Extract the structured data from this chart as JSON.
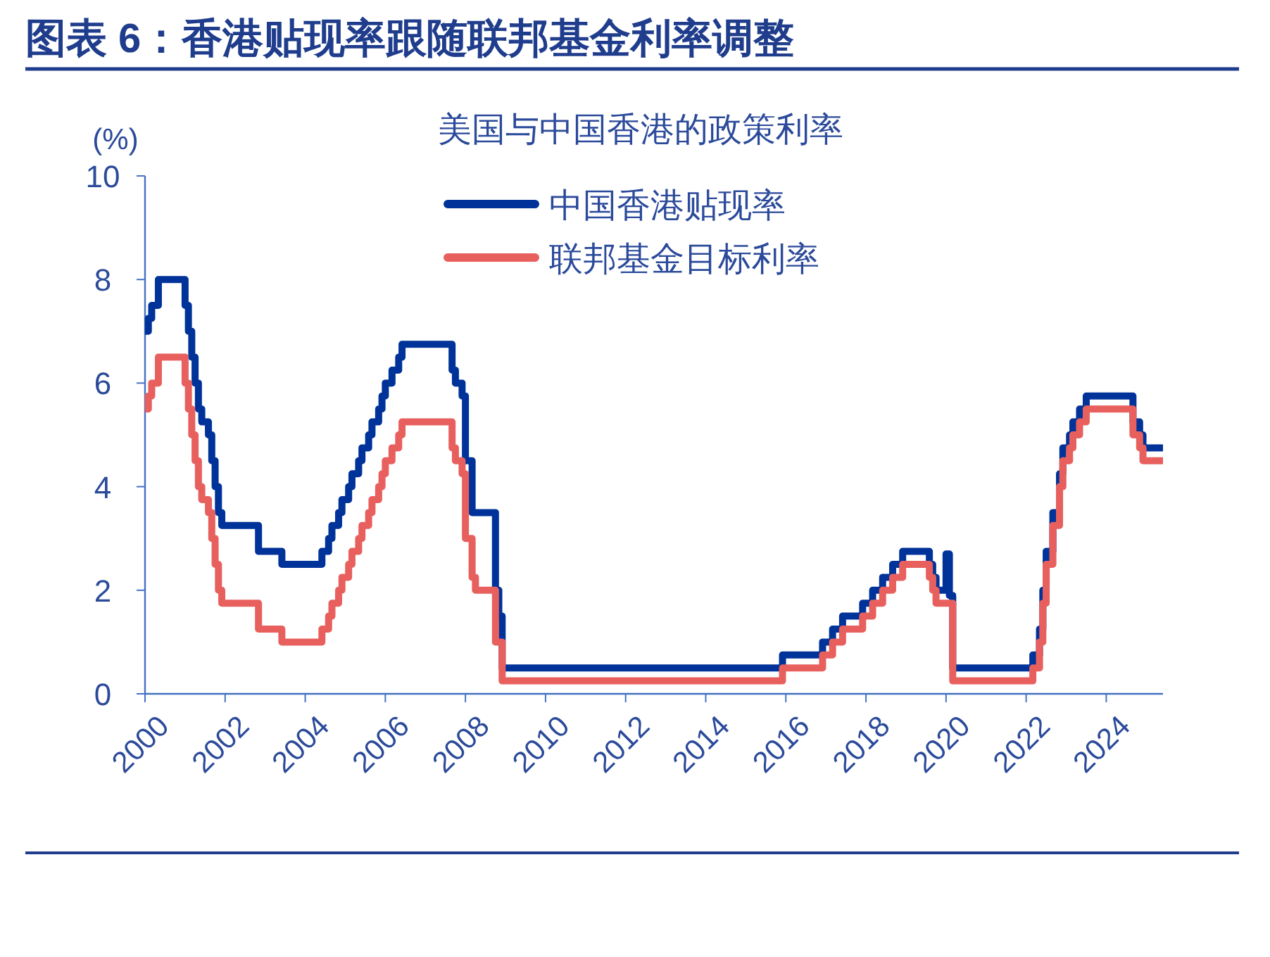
{
  "chart_data": {
    "type": "step",
    "title": "图表 6：香港贴现率跟随联邦基金利率调整",
    "subtitle": "美国与中国香港的政策利率",
    "ylabel": "(%)",
    "xlim": [
      "2000-01",
      "2025-06"
    ],
    "ylim": [
      0,
      10
    ],
    "yticks": [
      0,
      2,
      4,
      6,
      8,
      10
    ],
    "xticks": [
      "2000",
      "2002",
      "2004",
      "2006",
      "2008",
      "2010",
      "2012",
      "2014",
      "2016",
      "2018",
      "2020",
      "2022",
      "2024"
    ],
    "grid": false,
    "legend": "top",
    "marker": "none",
    "line_style": "solid",
    "series": [
      {
        "name": "中国香港贴现率",
        "color": "#003399",
        "x": [
          "2000-01",
          "2000-02",
          "2000-03",
          "2000-05",
          "2001-01",
          "2001-02",
          "2001-03",
          "2001-04",
          "2001-05",
          "2001-06",
          "2001-08",
          "2001-09",
          "2001-10",
          "2001-11",
          "2001-12",
          "2002-11",
          "2003-06",
          "2004-06",
          "2004-08",
          "2004-09",
          "2004-11",
          "2004-12",
          "2005-02",
          "2005-03",
          "2005-05",
          "2005-06",
          "2005-08",
          "2005-09",
          "2005-11",
          "2005-12",
          "2006-01",
          "2006-03",
          "2006-05",
          "2006-06",
          "2007-09",
          "2007-10",
          "2007-12",
          "2008-01",
          "2008-03",
          "2008-10",
          "2008-11",
          "2008-12",
          "2015-12",
          "2016-12",
          "2017-03",
          "2017-06",
          "2017-12",
          "2018-03",
          "2018-06",
          "2018-09",
          "2018-12",
          "2019-08",
          "2019-09",
          "2019-10",
          "2020-01",
          "2020-02",
          "2020-03",
          "2022-03",
          "2022-05",
          "2022-06",
          "2022-07",
          "2022-09",
          "2022-11",
          "2022-12",
          "2023-02",
          "2023-03",
          "2023-05",
          "2023-07",
          "2024-09",
          "2024-11",
          "2024-12",
          "2025-06"
        ],
        "values": [
          7.0,
          7.25,
          7.5,
          8.0,
          7.5,
          7.0,
          6.5,
          6.0,
          5.5,
          5.25,
          5.0,
          4.5,
          4.0,
          3.5,
          3.25,
          2.75,
          2.5,
          2.75,
          3.0,
          3.25,
          3.5,
          3.75,
          4.0,
          4.25,
          4.5,
          4.75,
          5.0,
          5.25,
          5.5,
          5.75,
          6.0,
          6.25,
          6.5,
          6.75,
          6.25,
          6.0,
          5.75,
          4.5,
          3.5,
          2.0,
          1.5,
          0.5,
          0.75,
          1.0,
          1.25,
          1.5,
          1.75,
          2.0,
          2.25,
          2.5,
          2.75,
          2.5,
          2.25,
          2.0,
          2.7,
          1.9,
          0.5,
          0.75,
          1.25,
          2.0,
          2.75,
          3.5,
          4.25,
          4.75,
          5.0,
          5.25,
          5.5,
          5.75,
          5.25,
          5.0,
          4.75,
          4.75
        ]
      },
      {
        "name": "联邦基金目标利率",
        "color": "#e8605e",
        "x": [
          "2000-01",
          "2000-02",
          "2000-03",
          "2000-05",
          "2001-01",
          "2001-02",
          "2001-03",
          "2001-04",
          "2001-05",
          "2001-06",
          "2001-08",
          "2001-09",
          "2001-10",
          "2001-11",
          "2001-12",
          "2002-11",
          "2003-06",
          "2004-06",
          "2004-08",
          "2004-09",
          "2004-11",
          "2004-12",
          "2005-02",
          "2005-03",
          "2005-05",
          "2005-06",
          "2005-08",
          "2005-09",
          "2005-11",
          "2005-12",
          "2006-01",
          "2006-03",
          "2006-05",
          "2006-06",
          "2007-09",
          "2007-10",
          "2007-12",
          "2008-01",
          "2008-03",
          "2008-04",
          "2008-10",
          "2008-12",
          "2015-12",
          "2016-12",
          "2017-03",
          "2017-06",
          "2017-12",
          "2018-03",
          "2018-06",
          "2018-09",
          "2018-12",
          "2019-08",
          "2019-09",
          "2019-10",
          "2020-03",
          "2022-03",
          "2022-05",
          "2022-06",
          "2022-07",
          "2022-09",
          "2022-11",
          "2022-12",
          "2023-02",
          "2023-03",
          "2023-05",
          "2023-07",
          "2024-09",
          "2024-11",
          "2024-12",
          "2025-06"
        ],
        "values": [
          5.5,
          5.75,
          6.0,
          6.5,
          6.0,
          5.5,
          5.0,
          4.5,
          4.0,
          3.75,
          3.5,
          3.0,
          2.5,
          2.0,
          1.75,
          1.25,
          1.0,
          1.25,
          1.5,
          1.75,
          2.0,
          2.25,
          2.5,
          2.75,
          3.0,
          3.25,
          3.5,
          3.75,
          4.0,
          4.25,
          4.5,
          4.75,
          5.0,
          5.25,
          4.75,
          4.5,
          4.25,
          3.0,
          2.25,
          2.0,
          1.0,
          0.25,
          0.5,
          0.75,
          1.0,
          1.25,
          1.5,
          1.75,
          2.0,
          2.25,
          2.5,
          2.25,
          2.0,
          1.75,
          0.25,
          0.5,
          1.0,
          1.75,
          2.5,
          3.25,
          4.0,
          4.5,
          4.75,
          5.0,
          5.25,
          5.5,
          5.0,
          4.75,
          4.5,
          4.5
        ]
      }
    ]
  }
}
